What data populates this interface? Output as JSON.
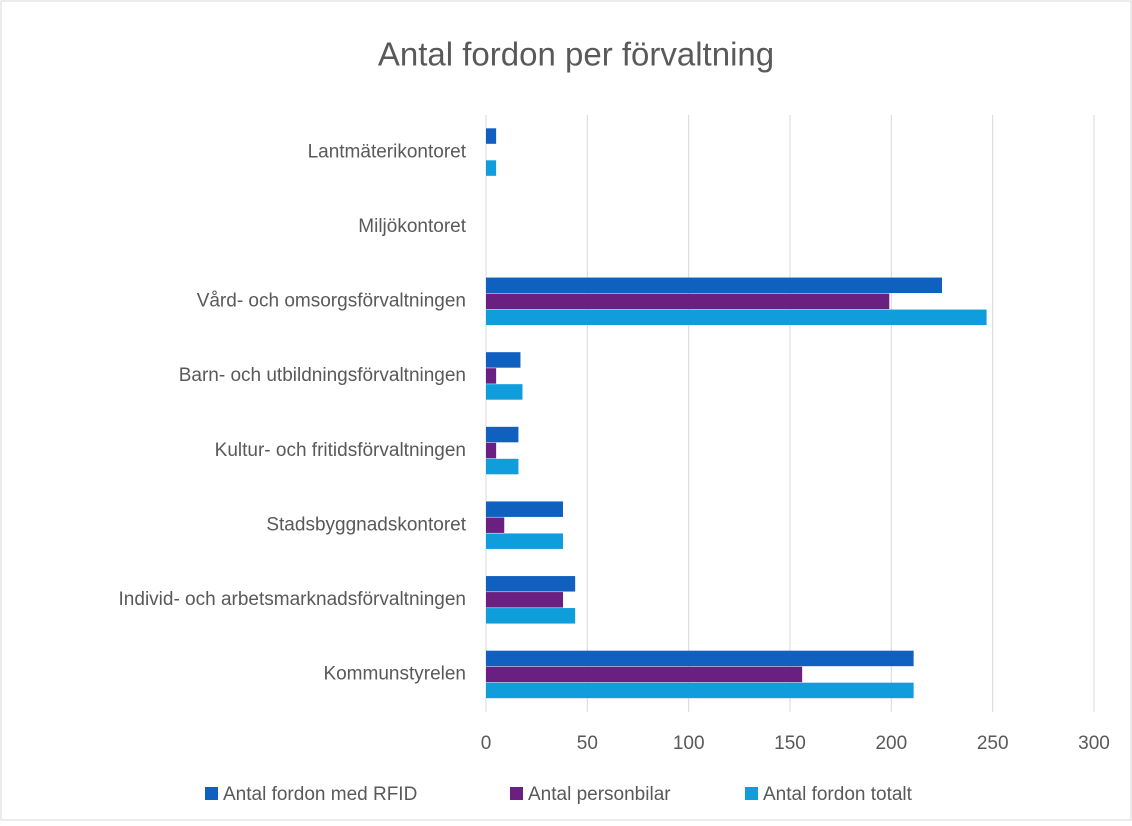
{
  "chart_data": {
    "type": "hbar",
    "title": "Antal fordon per förvaltning",
    "categories": [
      "Kommunstyrelen",
      "Individ- och arbetsmarknadsförvaltningen",
      "Stadsbyggnadskontoret",
      "Kultur- och fritidsförvaltningen",
      "Barn- och utbildningsförvaltningen",
      "Vård- och omsorgsförvaltningen",
      "Miljökontoret",
      "Lantmäterikontoret"
    ],
    "series": [
      {
        "name": "Antal fordon med RFID",
        "color": "#1060c0",
        "values": [
          211,
          44,
          38,
          16,
          17,
          225,
          0,
          5
        ]
      },
      {
        "name": "Antal personbilar",
        "color": "#6a2080",
        "values": [
          156,
          38,
          9,
          5,
          5,
          199,
          0,
          0
        ]
      },
      {
        "name": "Antal fordon totalt",
        "color": "#109ddb",
        "values": [
          211,
          44,
          38,
          16,
          18,
          247,
          0,
          5
        ]
      }
    ],
    "xlim": [
      0,
      300
    ],
    "xticks": [
      0,
      50,
      100,
      150,
      200,
      250,
      300
    ],
    "grid": true
  }
}
